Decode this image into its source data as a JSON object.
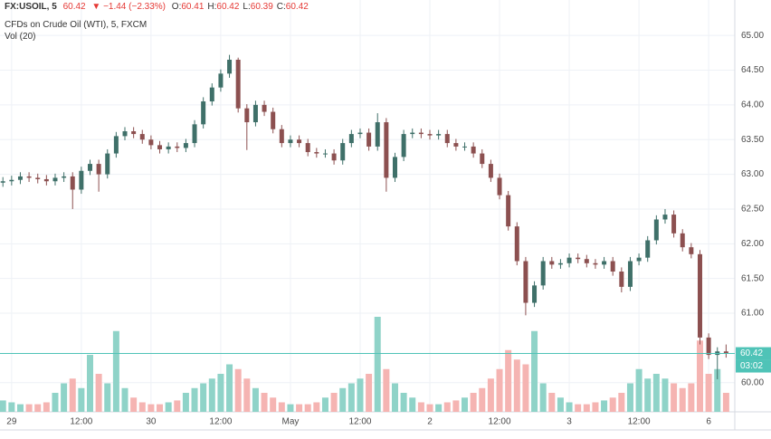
{
  "chart_data": {
    "type": "candlestick",
    "header": {
      "symbol": "FX:USOIL, 5",
      "last": "60.42",
      "change": "▼ −1.44 (−2.33%)",
      "ohlc": [
        {
          "label": "O:",
          "value": "60.41"
        },
        {
          "label": "H:",
          "value": "60.42"
        },
        {
          "label": "L:",
          "value": "60.39"
        },
        {
          "label": "C:",
          "value": "60.42"
        }
      ]
    },
    "title": "CFDs on Crude Oil (WTI), 5, FXCM",
    "volume_label": "Vol (20)",
    "last_price": 60.42,
    "countdown": "03:02",
    "up_color": "#3f7069",
    "down_color": "#8c5050",
    "volume_up_color": "#8fd3c8",
    "volume_down_color": "#f5b4b2",
    "last_color": "#4fc3b7",
    "grid": true,
    "xlim": [
      -2,
      124.5
    ],
    "xticks": [
      {
        "value": 0,
        "label": "29"
      },
      {
        "value": 12,
        "label": "12:00"
      },
      {
        "value": 24,
        "label": "30"
      },
      {
        "value": 36,
        "label": "12:00"
      },
      {
        "value": 48,
        "label": "May"
      },
      {
        "value": 60,
        "label": "12:00"
      },
      {
        "value": 72,
        "label": "2"
      },
      {
        "value": 84,
        "label": "12:00"
      },
      {
        "value": 96,
        "label": "3"
      },
      {
        "value": 108,
        "label": "12:00"
      },
      {
        "value": 120,
        "label": "6"
      }
    ],
    "ylim": [
      59.58,
      65.51
    ],
    "yticks": [
      {
        "value": 60,
        "label": "60.00"
      },
      {
        "value": 61,
        "label": "61.00"
      },
      {
        "value": 61.5,
        "label": "61.50"
      },
      {
        "value": 62,
        "label": "62.00"
      },
      {
        "value": 62.5,
        "label": "62.50"
      },
      {
        "value": 63,
        "label": "63.00"
      },
      {
        "value": 63.5,
        "label": "63.50"
      },
      {
        "value": 64,
        "label": "64.00"
      },
      {
        "value": 64.5,
        "label": "64.50"
      },
      {
        "value": 65,
        "label": "65.00"
      }
    ],
    "x": [
      -1.5,
      0,
      1.5,
      3,
      4.5,
      6,
      7.5,
      9,
      10.5,
      12,
      13.5,
      15,
      16.5,
      18,
      19.5,
      21,
      22.5,
      24,
      25.5,
      27,
      28.5,
      30,
      31.5,
      33,
      34.5,
      36,
      37.5,
      39,
      40.5,
      42,
      43.5,
      45,
      46.5,
      48,
      49.5,
      51,
      52.5,
      54,
      55.5,
      57,
      58.5,
      60,
      61.5,
      63,
      64.5,
      66,
      67.5,
      69,
      70.5,
      72,
      73.5,
      75,
      76.5,
      78,
      79.5,
      81,
      82.5,
      84,
      85.5,
      87,
      88.5,
      90,
      91.5,
      93,
      94.5,
      96,
      97.5,
      99,
      100.5,
      102,
      103.5,
      105,
      106.5,
      108,
      109.5,
      111,
      112.5,
      114,
      115.5,
      117,
      118.5,
      120,
      121.5,
      123
    ],
    "open": [
      62.88,
      62.9,
      62.92,
      62.97,
      62.95,
      62.93,
      62.9,
      62.95,
      62.97,
      62.78,
      63.05,
      63.15,
      63.0,
      63.3,
      63.55,
      63.62,
      63.58,
      63.5,
      63.42,
      63.36,
      63.4,
      63.38,
      63.45,
      63.72,
      64.05,
      64.25,
      64.45,
      64.65,
      63.95,
      63.75,
      64.0,
      63.9,
      63.65,
      63.45,
      63.5,
      63.45,
      63.32,
      63.3,
      63.3,
      63.2,
      63.45,
      63.58,
      63.6,
      63.4,
      63.75,
      62.95,
      63.25,
      63.58,
      63.6,
      63.58,
      63.56,
      63.58,
      63.45,
      63.4,
      63.4,
      63.3,
      63.15,
      62.95,
      62.7,
      62.25,
      61.75,
      61.15,
      61.4,
      61.75,
      61.7,
      61.72,
      61.8,
      61.78,
      61.72,
      61.7,
      61.75,
      61.6,
      61.38,
      61.75,
      61.8,
      62.05,
      62.35,
      62.42,
      62.15,
      61.95,
      61.85,
      60.65,
      60.4,
      60.45
    ],
    "high": [
      62.96,
      62.98,
      63.03,
      63.03,
      63.01,
      62.99,
      63.01,
      63.03,
      63.03,
      63.11,
      63.21,
      63.21,
      63.36,
      63.61,
      63.68,
      63.68,
      63.64,
      63.56,
      63.48,
      63.46,
      63.46,
      63.51,
      63.78,
      64.11,
      64.31,
      64.51,
      64.72,
      64.68,
      64.01,
      64.06,
      64.06,
      63.96,
      63.71,
      63.56,
      63.56,
      63.51,
      63.38,
      63.36,
      63.36,
      63.51,
      63.64,
      63.66,
      63.66,
      63.88,
      63.81,
      63.31,
      63.64,
      63.66,
      63.66,
      63.64,
      63.64,
      63.64,
      63.51,
      63.46,
      63.46,
      63.36,
      63.21,
      63.01,
      62.76,
      62.31,
      61.81,
      61.46,
      61.81,
      61.81,
      61.78,
      61.86,
      61.86,
      61.84,
      61.78,
      61.81,
      61.81,
      61.66,
      61.81,
      61.86,
      62.11,
      62.41,
      62.5,
      62.48,
      62.21,
      62.01,
      61.91,
      60.71,
      60.51,
      60.55
    ],
    "low": [
      62.82,
      62.84,
      62.86,
      62.89,
      62.87,
      62.84,
      62.84,
      62.89,
      62.5,
      62.72,
      62.99,
      62.75,
      62.94,
      63.24,
      63.49,
      63.52,
      63.44,
      63.36,
      63.3,
      63.3,
      63.32,
      63.32,
      63.39,
      63.66,
      63.99,
      64.19,
      64.39,
      63.89,
      63.35,
      63.69,
      63.84,
      63.59,
      63.39,
      63.39,
      63.39,
      63.26,
      63.24,
      63.24,
      63.14,
      63.14,
      63.39,
      63.52,
      63.34,
      63.34,
      62.75,
      62.89,
      63.19,
      63.52,
      63.52,
      63.5,
      63.5,
      63.39,
      63.34,
      63.34,
      63.24,
      63.09,
      62.89,
      62.64,
      62.19,
      61.69,
      60.97,
      61.09,
      61.34,
      61.64,
      61.64,
      61.66,
      61.72,
      61.66,
      61.64,
      61.64,
      61.54,
      61.3,
      61.32,
      61.69,
      61.74,
      61.99,
      62.29,
      62.09,
      61.89,
      61.79,
      60.55,
      60.34,
      60.05,
      60.36
    ],
    "close": [
      62.9,
      62.92,
      62.97,
      62.95,
      62.93,
      62.9,
      62.95,
      62.97,
      62.78,
      63.05,
      63.15,
      63.0,
      63.3,
      63.55,
      63.62,
      63.58,
      63.5,
      63.42,
      63.36,
      63.4,
      63.38,
      63.45,
      63.72,
      64.05,
      64.25,
      64.45,
      64.65,
      63.95,
      63.75,
      64.0,
      63.9,
      63.65,
      63.45,
      63.5,
      63.45,
      63.32,
      63.3,
      63.3,
      63.2,
      63.45,
      63.58,
      63.6,
      63.4,
      63.75,
      62.95,
      63.25,
      63.58,
      63.6,
      63.58,
      63.56,
      63.58,
      63.45,
      63.4,
      63.4,
      63.3,
      63.15,
      62.95,
      62.7,
      62.25,
      61.75,
      61.15,
      61.4,
      61.75,
      61.7,
      61.72,
      61.8,
      61.78,
      61.72,
      61.7,
      61.75,
      61.6,
      61.38,
      61.75,
      61.8,
      62.05,
      62.35,
      62.42,
      62.15,
      61.95,
      61.85,
      60.65,
      60.4,
      60.45,
      60.42
    ],
    "volume": [
      12,
      10,
      8,
      8,
      8,
      10,
      20,
      30,
      35,
      25,
      60,
      40,
      30,
      85,
      25,
      15,
      10,
      8,
      8,
      10,
      12,
      20,
      25,
      30,
      35,
      40,
      50,
      45,
      35,
      25,
      20,
      15,
      10,
      8,
      8,
      8,
      10,
      15,
      20,
      25,
      30,
      35,
      40,
      100,
      45,
      30,
      20,
      15,
      10,
      8,
      8,
      10,
      12,
      15,
      20,
      25,
      35,
      45,
      65,
      55,
      50,
      85,
      30,
      20,
      15,
      10,
      8,
      8,
      10,
      12,
      15,
      20,
      30,
      45,
      35,
      40,
      35,
      30,
      25,
      30,
      75,
      40,
      45,
      20
    ]
  }
}
